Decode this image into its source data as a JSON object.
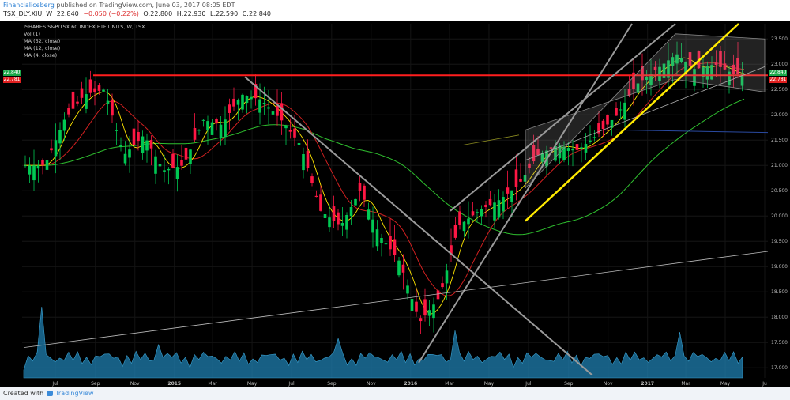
{
  "header": {
    "author": "Financialiceberg",
    "published": "published on TradingView.com, June 03, 2017 08:05 EDT",
    "symbol": "TSX_DLY:XIU, W",
    "close": "22.840",
    "change": "−0.050 (−0.22%)",
    "open": "O:22.800",
    "high": "H:22.930",
    "low": "L:22.590",
    "close_label": "C:22.840"
  },
  "legend": {
    "title": "ISHARES S&P/TSX 60 INDEX ETF UNITS, W, TSX",
    "vol": "Vol (1)",
    "ma1": "MA (52, close)",
    "ma2": "MA (12, close)",
    "ma3": "MA (4, close)"
  },
  "price_tags": {
    "current": "22.840",
    "resistance": "22.781",
    "current_left": "22.840",
    "resistance_left": "22.781"
  },
  "footer": {
    "created_with": "Created with",
    "brand": "TradingView"
  },
  "colors": {
    "bull": "#00c853",
    "bear": "#ff1744",
    "resistance": "#ff1e1e",
    "trendline": "#ffea00",
    "ma52": "#2fbf2f",
    "ma12": "#d02020",
    "ma4": "#ffe600",
    "volume": "#1f7fb0"
  },
  "chart_data": {
    "type": "candlestick",
    "title": "ISHARES S&P/TSX 60 INDEX ETF UNITS, W, TSX",
    "ylim": [
      16.8,
      23.8
    ],
    "y_ticks": [
      "17.000",
      "17.500",
      "18.000",
      "18.500",
      "19.000",
      "19.500",
      "20.000",
      "20.500",
      "21.000",
      "21.500",
      "22.000",
      "22.500",
      "23.000",
      "23.500"
    ],
    "x_ticks": [
      "Jul",
      "Sep",
      "Nov",
      "2015",
      "Mar",
      "May",
      "Jul",
      "Sep",
      "Nov",
      "2016",
      "Mar",
      "May",
      "Jul",
      "Sep",
      "Nov",
      "2017",
      "Mar",
      "May",
      "Ju"
    ],
    "x_tick_dates": [
      "2014-07",
      "2014-09",
      "2014-11",
      "2015-01",
      "2015-03",
      "2015-05",
      "2015-07",
      "2015-09",
      "2015-11",
      "2016-01",
      "2016-03",
      "2016-05",
      "2016-07",
      "2016-09",
      "2016-11",
      "2017-01",
      "2017-03",
      "2017-05",
      "2017-07"
    ],
    "resistance_level": 22.781,
    "last_close": 22.84,
    "close_series": [
      {
        "date": "2014-06",
        "close": 21.0
      },
      {
        "date": "2014-07",
        "close": 21.9
      },
      {
        "date": "2014-08",
        "close": 22.4
      },
      {
        "date": "2014-09",
        "close": 22.5
      },
      {
        "date": "2014-10",
        "close": 21.2
      },
      {
        "date": "2014-11",
        "close": 21.6
      },
      {
        "date": "2014-12",
        "close": 20.9
      },
      {
        "date": "2015-01",
        "close": 21.0
      },
      {
        "date": "2015-02",
        "close": 21.9
      },
      {
        "date": "2015-03",
        "close": 21.8
      },
      {
        "date": "2015-04",
        "close": 22.4
      },
      {
        "date": "2015-05",
        "close": 22.3
      },
      {
        "date": "2015-06",
        "close": 21.9
      },
      {
        "date": "2015-07",
        "close": 21.4
      },
      {
        "date": "2015-08",
        "close": 20.1
      },
      {
        "date": "2015-09",
        "close": 19.8
      },
      {
        "date": "2015-10",
        "close": 20.5
      },
      {
        "date": "2015-11",
        "close": 19.6
      },
      {
        "date": "2015-12",
        "close": 19.1
      },
      {
        "date": "2016-01",
        "close": 17.9
      },
      {
        "date": "2016-02",
        "close": 18.4
      },
      {
        "date": "2016-03",
        "close": 19.8
      },
      {
        "date": "2016-04",
        "close": 20.1
      },
      {
        "date": "2016-05",
        "close": 20.3
      },
      {
        "date": "2016-06",
        "close": 20.6
      },
      {
        "date": "2016-07",
        "close": 21.2
      },
      {
        "date": "2016-08",
        "close": 21.4
      },
      {
        "date": "2016-09",
        "close": 21.3
      },
      {
        "date": "2016-10",
        "close": 21.6
      },
      {
        "date": "2016-11",
        "close": 22.0
      },
      {
        "date": "2016-12",
        "close": 22.6
      },
      {
        "date": "2017-01",
        "close": 22.9
      },
      {
        "date": "2017-02",
        "close": 23.2
      },
      {
        "date": "2017-03",
        "close": 22.9
      },
      {
        "date": "2017-04",
        "close": 23.0
      },
      {
        "date": "2017-05",
        "close": 22.8
      }
    ]
  }
}
